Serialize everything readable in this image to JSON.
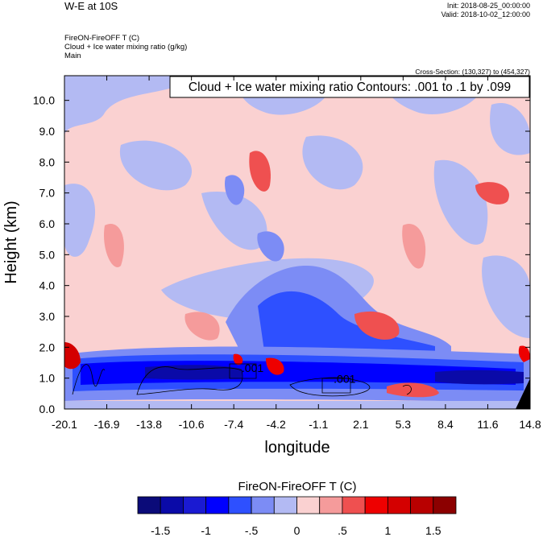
{
  "header": {
    "title": "W-E at 10S",
    "init": "Init: 2018-08-25_00:00:00",
    "valid": "Valid: 2018-10-02_12:00:00",
    "field_name": "FireON-FireOFF T   (C)",
    "overlay_name": "Cloud + Ice water mixing ratio   (g/kg)",
    "level": "Main",
    "cross_section": "Cross-Section: (130,327) to (454,327)"
  },
  "chart_data": {
    "type": "heatmap",
    "title": "W-E at 10S",
    "xlabel": "longitude",
    "ylabel": "Height (km)",
    "xlim": [
      -20.1,
      14.8
    ],
    "ylim": [
      0.0,
      10.8
    ],
    "x_ticks": [
      "-20.1",
      "-16.9",
      "-13.8",
      "-10.6",
      "-7.4",
      "-4.2",
      "-1.1",
      "2.1",
      "5.3",
      "8.4",
      "11.6",
      "14.8"
    ],
    "y_ticks": [
      "0.0",
      "1.0",
      "2.0",
      "3.0",
      "4.0",
      "5.0",
      "6.0",
      "7.0",
      "8.0",
      "9.0",
      "10.0"
    ],
    "y_tick_values": [
      0,
      1,
      2,
      3,
      4,
      5,
      6,
      7,
      8,
      9,
      10
    ],
    "contour_box": "Cloud + Ice water mixing ratio Contours: .001 to .1 by .099",
    "contour_labels": [
      {
        "text": ".001",
        "lon": -6.0,
        "height": 1.2
      },
      {
        "text": ".001",
        "lon": 0.9,
        "height": 0.85
      }
    ],
    "colorbar": {
      "title": "FireON-FireOFF T  (C)",
      "colors": [
        "#0b0b79",
        "#0a0aa8",
        "#1a1ad2",
        "#0000ff",
        "#2e50ff",
        "#7c8cf5",
        "#b3baf3",
        "#fad1d1",
        "#f59b9b",
        "#ef5050",
        "#ee0000",
        "#d40000",
        "#b80000",
        "#8c0000"
      ],
      "labels": [
        "-1.5",
        "-1",
        "-.5",
        "0",
        ".5",
        "1",
        "1.5"
      ],
      "label_values": [
        -1.5,
        -1.0,
        -0.5,
        0.0,
        0.5,
        1.0,
        1.5
      ],
      "min": -1.75,
      "max": 1.75
    }
  }
}
